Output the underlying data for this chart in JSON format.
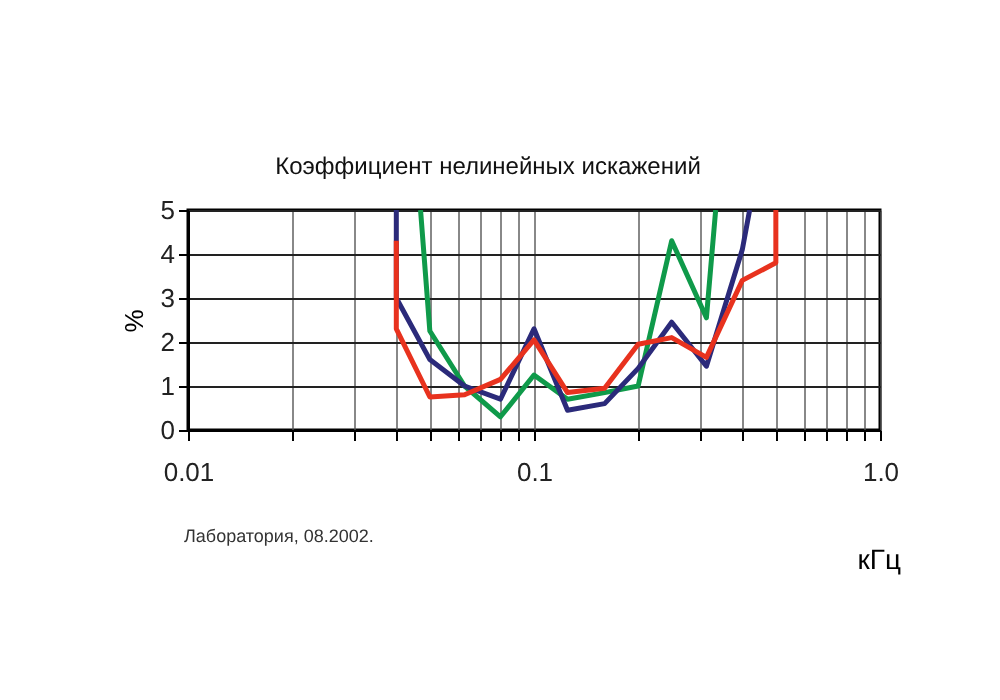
{
  "chart_data": {
    "type": "line",
    "title": "Коэффициент нелинейных искажений",
    "xlabel": "кГц",
    "ylabel": "%",
    "annotations": [
      "Лаборатория, 08.2002."
    ],
    "log": "x",
    "grid": true,
    "line_style": "solid",
    "marker": "none",
    "xlim": [
      0.01,
      1.0
    ],
    "ylim": [
      0,
      5
    ],
    "xticks": [
      0.01,
      {
        "value": 0.02,
        "label": null
      },
      {
        "value": 0.03,
        "label": null
      },
      {
        "value": 0.04,
        "label": null
      },
      {
        "value": 0.05,
        "label": null
      },
      {
        "value": 0.06,
        "label": null
      },
      {
        "value": 0.07,
        "label": null
      },
      {
        "value": 0.08,
        "label": null
      },
      {
        "value": 0.09,
        "label": null
      },
      0.1,
      {
        "value": 0.2,
        "label": null
      },
      {
        "value": 0.3,
        "label": null
      },
      {
        "value": 0.4,
        "label": null
      },
      {
        "value": 0.5,
        "label": null
      },
      {
        "value": 0.6,
        "label": null
      },
      {
        "value": 0.7,
        "label": null
      },
      {
        "value": 0.8,
        "label": null
      },
      {
        "value": 0.9,
        "label": null
      },
      {
        "value": 1.0,
        "label": "1.0"
      }
    ],
    "yticks": [
      0,
      1,
      2,
      3,
      4,
      5
    ],
    "series": [
      {
        "color": "#e8321e",
        "x": [
          0.04,
          0.04,
          0.05,
          0.063,
          0.08,
          0.1,
          0.125,
          0.16,
          0.2,
          0.25,
          0.315,
          0.4,
          0.5,
          0.5
        ],
        "values": [
          4.3,
          2.3,
          0.75,
          0.8,
          1.15,
          2.05,
          0.85,
          0.95,
          1.95,
          2.1,
          1.65,
          3.4,
          3.8,
          5
        ]
      },
      {
        "color": "#2b2a7a",
        "x": [
          0.04,
          0.04,
          0.05,
          0.063,
          0.08,
          0.1,
          0.125,
          0.16,
          0.2,
          0.25,
          0.315,
          0.4,
          0.42
        ],
        "values": [
          5,
          3.0,
          1.6,
          1.0,
          0.7,
          2.3,
          0.45,
          0.6,
          1.4,
          2.45,
          1.45,
          4.1,
          5
        ]
      },
      {
        "color": "#0f9a4a",
        "x": [
          0.047,
          0.05,
          0.063,
          0.08,
          0.1,
          0.125,
          0.16,
          0.2,
          0.25,
          0.315,
          0.335
        ],
        "values": [
          5,
          2.25,
          1.0,
          0.3,
          1.25,
          0.7,
          0.85,
          1.0,
          4.3,
          2.55,
          5
        ]
      }
    ]
  }
}
